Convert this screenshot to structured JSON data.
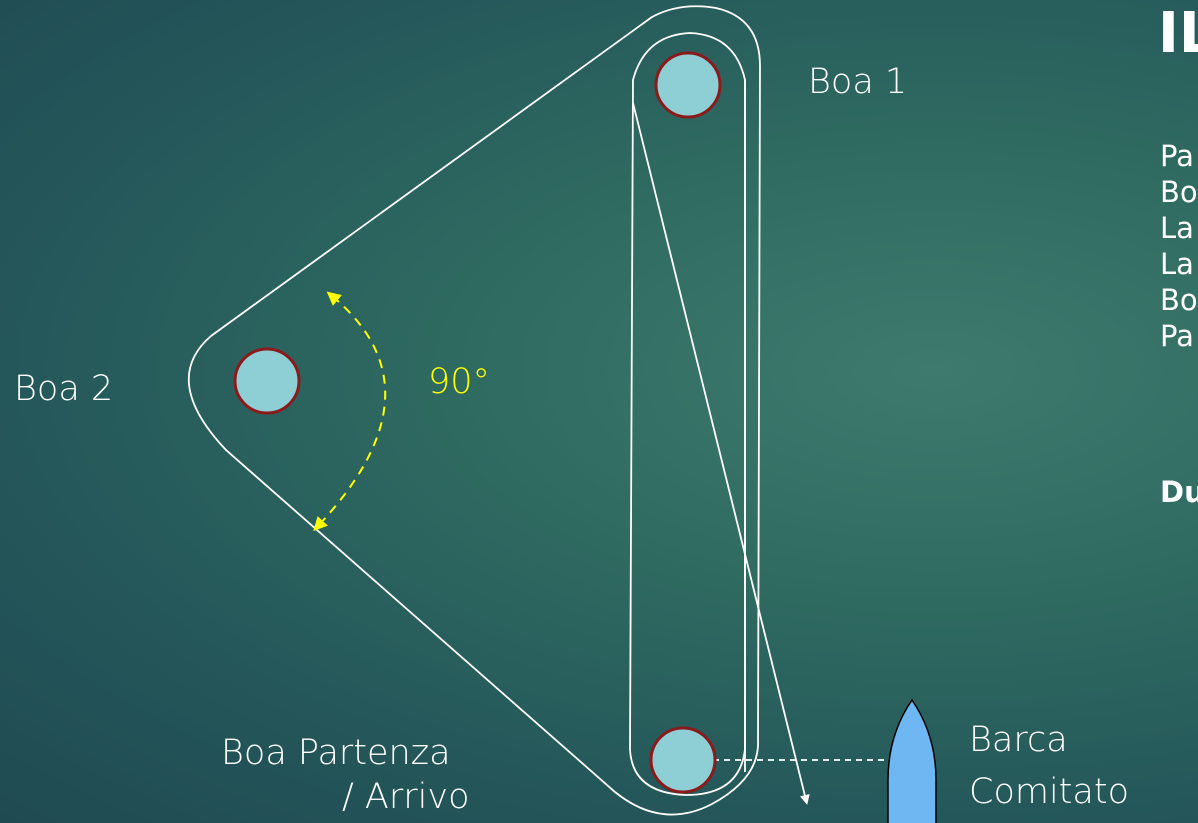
{
  "colors": {
    "buoy_fill": "#8ecfd6",
    "buoy_stroke": "#8b1a1a",
    "boat_fill": "#6fb7f2",
    "angle_color": "#ffff00",
    "line_color": "#ffffff"
  },
  "labels": {
    "buoy1": "Boa 1",
    "buoy2": "Boa 2",
    "start_line1": "Boa Partenza",
    "start_line2": "/ Arrivo",
    "boat_line1": "Barca",
    "boat_line2": "Comitato",
    "angle": "90°"
  },
  "side_panel": {
    "title": "IL",
    "items": [
      "Pa",
      "Bo",
      "La",
      "La",
      "Bo",
      "Pa"
    ],
    "duration": "Du"
  },
  "icons": {
    "buoy": "circle-buoy-icon",
    "boat": "committee-boat-icon",
    "arrow": "arrowhead-icon"
  }
}
